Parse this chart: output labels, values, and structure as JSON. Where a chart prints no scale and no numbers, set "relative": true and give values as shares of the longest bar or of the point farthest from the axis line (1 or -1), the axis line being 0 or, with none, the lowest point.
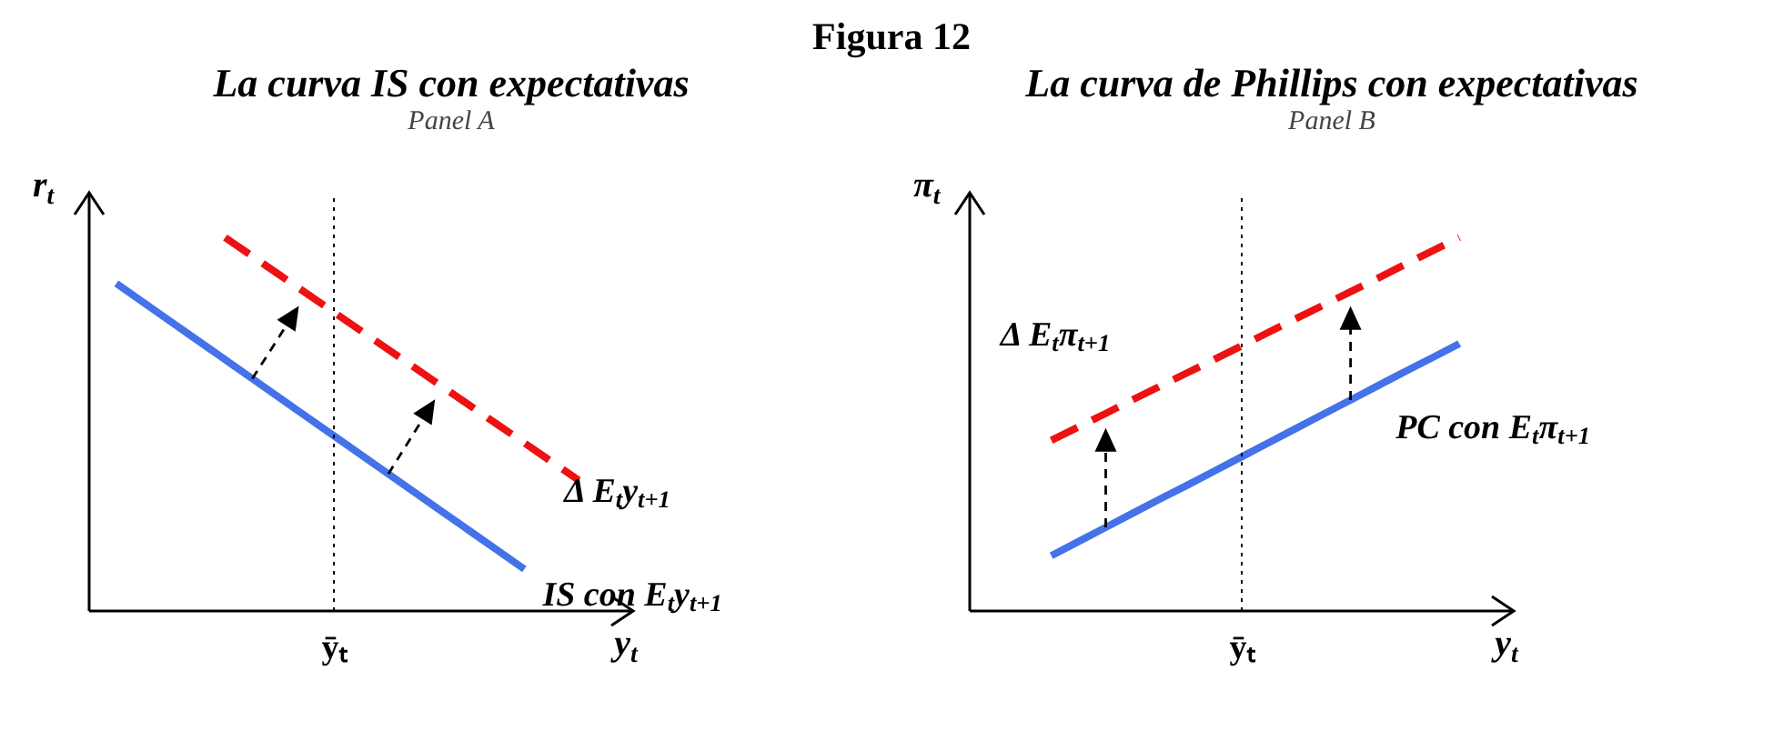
{
  "chart_data": [
    {
      "type": "line",
      "title": "La curva IS con expectativas",
      "subtitle": "Panel A",
      "annotations": [
        "Figura 12",
        "ȳₜ"
      ],
      "relative": true,
      "xlabel": "y$_{t}$",
      "ylabel": "r$_{t}$",
      "categories": [
        null,
        null,
        null,
        null,
        null,
        null,
        null,
        null,
        null,
        null,
        null,
        null,
        null,
        null,
        null,
        null,
        null,
        null,
        null,
        null,
        null
      ],
      "series": [
        {
          "name": "IS con E$_{t}$y$_{t+1}$",
          "color": "#4472e8",
          "line_style": "solid",
          "values": [
            null,
            0.877,
            0.826,
            0.775,
            0.724,
            0.673,
            0.622,
            0.571,
            0.52,
            0.469,
            0.418,
            0.367,
            0.316,
            0.265,
            0.214,
            0.163,
            0.112,
            null,
            null,
            null,
            null
          ]
        },
        {
          "name": "Δ E$_{t}$y$_{t+1}$",
          "color": "#ee1111",
          "line_style": "dashed",
          "values": [
            null,
            null,
            null,
            null,
            null,
            1,
            0.95,
            0.9,
            0.85,
            0.8,
            0.75,
            0.7,
            0.65,
            0.6,
            0.55,
            0.5,
            0.45,
            0.4,
            0.35,
            null,
            null
          ]
        }
      ]
    },
    {
      "type": "line",
      "title": "La curva de Phillips con expectativas",
      "subtitle": "Panel B",
      "annotations": [
        "ȳₜ"
      ],
      "relative": true,
      "xlabel": "y$_{t}$",
      "ylabel": "π$_{t}$",
      "categories": [
        null,
        null,
        null,
        null,
        null,
        null,
        null,
        null,
        null,
        null,
        null,
        null,
        null,
        null,
        null,
        null,
        null,
        null,
        null,
        null,
        null
      ],
      "series": [
        {
          "name": "PC con E$_{t}$π$_{t+1}$",
          "color": "#4472e8",
          "line_style": "solid",
          "values": [
            null,
            null,
            null,
            0.148,
            0.186,
            0.224,
            0.262,
            0.3,
            0.337,
            0.375,
            0.413,
            0.451,
            0.489,
            0.527,
            0.565,
            0.603,
            0.641,
            0.678,
            0.716,
            null,
            null
          ]
        },
        {
          "name": "Δ E$_{t}$π$_{t+1}$",
          "color": "#ee1111",
          "line_style": "dashed",
          "values": [
            null,
            null,
            null,
            0.457,
            0.493,
            0.529,
            0.566,
            0.602,
            0.638,
            0.674,
            0.71,
            0.747,
            0.783,
            0.819,
            0.855,
            0.891,
            0.928,
            0.964,
            1,
            null,
            null
          ]
        }
      ]
    }
  ]
}
